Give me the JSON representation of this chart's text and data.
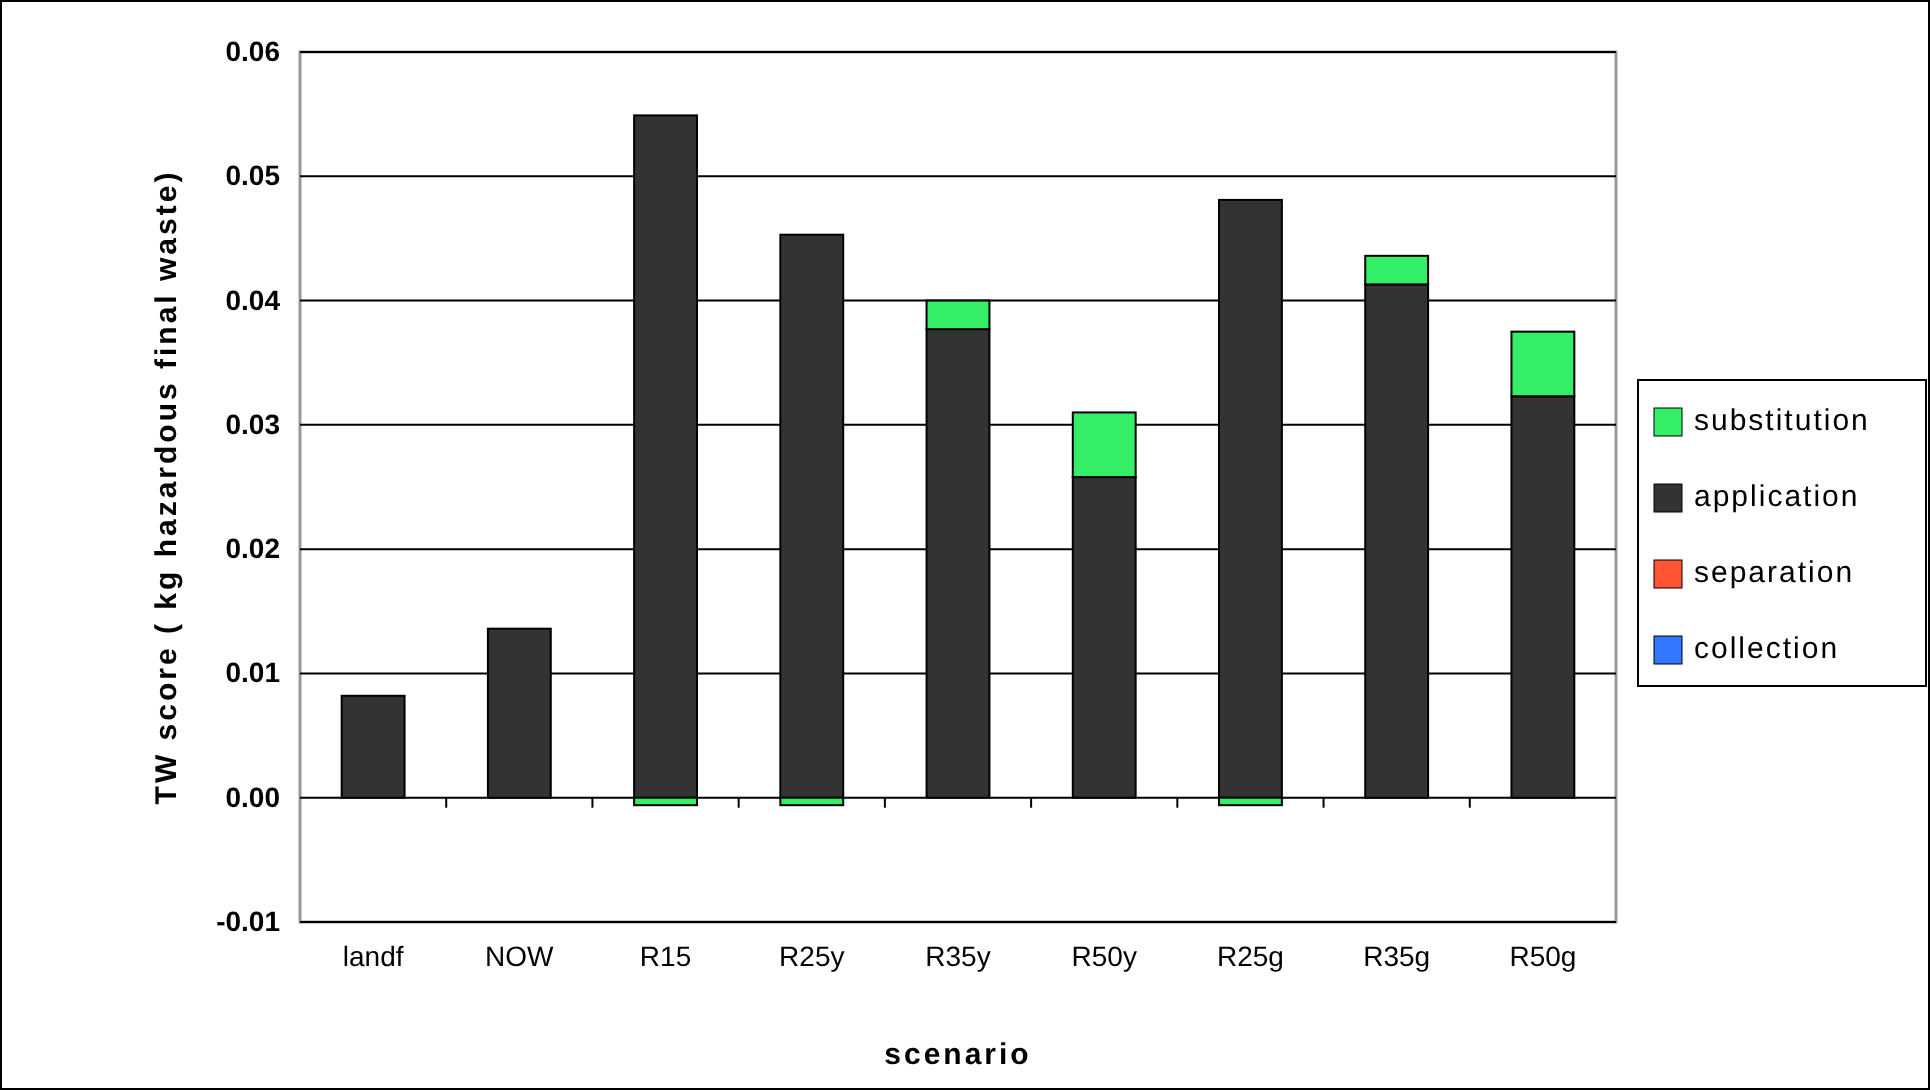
{
  "chart_data": {
    "type": "bar",
    "stacked": true,
    "xlabel": "scenario",
    "ylabel": "TW score ( kg hazardous final waste)",
    "categories": [
      "landf",
      "NOW",
      "R15",
      "R25y",
      "R35y",
      "R50y",
      "R25g",
      "R35g",
      "R50g"
    ],
    "series": [
      {
        "name": "collection",
        "color": "#3377ff",
        "values": [
          0,
          0,
          0,
          0,
          0,
          0,
          0,
          0,
          0
        ]
      },
      {
        "name": "separation",
        "color": "#ff5533",
        "values": [
          0,
          0,
          0,
          0,
          0,
          0,
          0,
          0,
          0
        ]
      },
      {
        "name": "application",
        "color": "#333333",
        "values": [
          0.0082,
          0.0136,
          0.0549,
          0.0453,
          0.0377,
          0.0258,
          0.0481,
          0.0413,
          0.0323
        ]
      },
      {
        "name": "substitution",
        "color": "#33ee66",
        "values": [
          0,
          0,
          -0.0006,
          -0.0006,
          0.0023,
          0.0052,
          -0.0006,
          0.0023,
          0.0052
        ]
      }
    ],
    "ylim": [
      -0.01,
      0.06
    ],
    "yticks": [
      {
        "value": -0.01,
        "label": "-0.01"
      },
      {
        "value": 0,
        "label": "0.00"
      },
      {
        "value": 0.01,
        "label": "0.01"
      },
      {
        "value": 0.02,
        "label": "0.02"
      },
      {
        "value": 0.03,
        "label": "0.03"
      },
      {
        "value": 0.04,
        "label": "0.04"
      },
      {
        "value": 0.05,
        "label": "0.05"
      },
      {
        "value": 0.06,
        "label": "0.06"
      }
    ],
    "grid": "y",
    "legend": "right"
  }
}
